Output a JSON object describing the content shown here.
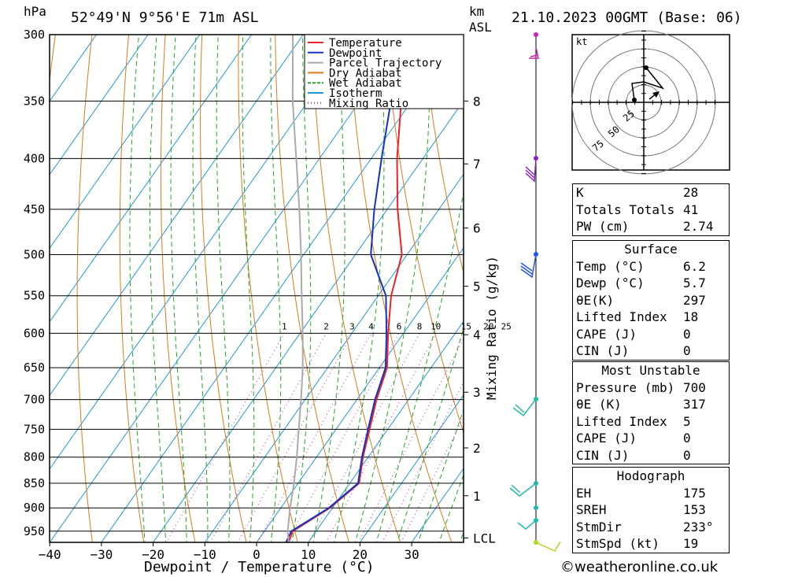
{
  "header": {
    "location": "52°49'N  9°56'E  71m  ASL",
    "datetime": "21.10.2023  00GMT  (Base: 06)",
    "hpa_unit": "hPa",
    "km_unit": "km",
    "asl_unit": "ASL"
  },
  "legend": [
    {
      "name": "Temperature",
      "color": "#ee2222",
      "style": "solid"
    },
    {
      "name": "Dewpoint",
      "color": "#1133cc",
      "style": "solid"
    },
    {
      "name": "Parcel Trajectory",
      "color": "#aaaaaa",
      "style": "solid"
    },
    {
      "name": "Dry Adiabat",
      "color": "#e07a1a",
      "style": "solid"
    },
    {
      "name": "Wet Adiabat",
      "color": "#22aa22",
      "style": "dashed"
    },
    {
      "name": "Isotherm",
      "color": "#2299dd",
      "style": "solid"
    },
    {
      "name": "Mixing Ratio",
      "color": "#cc22aa",
      "style": "dotted"
    }
  ],
  "chart_data": {
    "type": "line",
    "xlabel": "Dewpoint / Temperature (°C)",
    "ylabel_right": "Mixing Ratio (g/kg)",
    "x_ticks": [
      -40,
      -30,
      -20,
      -10,
      0,
      10,
      20,
      30
    ],
    "x_tick_labels": [
      "−40",
      "−30",
      "−20",
      "−10",
      "0",
      "10",
      "20",
      "30"
    ],
    "pressure_levels": [
      300,
      350,
      400,
      450,
      500,
      550,
      600,
      650,
      700,
      750,
      800,
      850,
      900,
      950
    ],
    "pressure_labels": [
      "300",
      "350",
      "400",
      "450",
      "500",
      "550",
      "600",
      "650",
      "700",
      "750",
      "800",
      "850",
      "900",
      "950"
    ],
    "ylim_hpa": [
      300,
      975
    ],
    "km_ticks": [
      {
        "label": "8",
        "p": 350
      },
      {
        "label": "7",
        "p": 405
      },
      {
        "label": "6",
        "p": 470
      },
      {
        "label": "5",
        "p": 538
      },
      {
        "label": "4",
        "p": 602
      },
      {
        "label": "3",
        "p": 688
      },
      {
        "label": "2",
        "p": 783
      },
      {
        "label": "1",
        "p": 875
      },
      {
        "label": "LCL",
        "p": 965
      }
    ],
    "mixing_ratio_labels": [
      "1",
      "2",
      "3",
      "4",
      "6",
      "8",
      "10",
      "15",
      "20",
      "25"
    ],
    "mixing_ratio_values": [
      1,
      2,
      3,
      4,
      6,
      8,
      10,
      15,
      20,
      25
    ],
    "series": [
      {
        "name": "Temperature",
        "color": "#ee2222",
        "points": [
          [
            975,
            6.2
          ],
          [
            950,
            5.5
          ],
          [
            900,
            9.5
          ],
          [
            850,
            11.8
          ],
          [
            800,
            9.0
          ],
          [
            750,
            6.5
          ],
          [
            700,
            3.8
          ],
          [
            650,
            1.5
          ],
          [
            600,
            -3.0
          ],
          [
            550,
            -7.5
          ],
          [
            500,
            -11.0
          ],
          [
            450,
            -18.0
          ],
          [
            400,
            -25.0
          ],
          [
            350,
            -32.0
          ],
          [
            300,
            -42.0
          ]
        ]
      },
      {
        "name": "Dewpoint",
        "color": "#1133cc",
        "points": [
          [
            975,
            5.7
          ],
          [
            950,
            5.2
          ],
          [
            900,
            9.3
          ],
          [
            850,
            11.6
          ],
          [
            800,
            8.8
          ],
          [
            750,
            6.2
          ],
          [
            700,
            3.5
          ],
          [
            650,
            1.2
          ],
          [
            600,
            -3.3
          ],
          [
            550,
            -8.5
          ],
          [
            500,
            -17.0
          ],
          [
            450,
            -22.5
          ],
          [
            400,
            -28.0
          ],
          [
            350,
            -34.0
          ],
          [
            300,
            -42.5
          ]
        ]
      },
      {
        "name": "Parcel Trajectory",
        "color": "#aaaaaa",
        "points": [
          [
            975,
            6.2
          ],
          [
            950,
            4.5
          ],
          [
            900,
            1.8
          ],
          [
            850,
            -0.8
          ],
          [
            800,
            -3.8
          ],
          [
            750,
            -7.2
          ],
          [
            700,
            -10.8
          ],
          [
            650,
            -14.8
          ],
          [
            600,
            -19.5
          ],
          [
            550,
            -24.8
          ],
          [
            500,
            -30.5
          ],
          [
            450,
            -37.0
          ],
          [
            400,
            -44.5
          ],
          [
            350,
            -53.0
          ],
          [
            300,
            -62.0
          ]
        ]
      }
    ]
  },
  "hodograph": {
    "unit": "kt",
    "ring_labels": [
      "25",
      "50",
      "75"
    ]
  },
  "indices": {
    "general": [
      {
        "label": "K",
        "value": "28"
      },
      {
        "label": "Totals Totals",
        "value": "41"
      },
      {
        "label": "PW (cm)",
        "value": "2.74"
      }
    ],
    "surface": {
      "title": "Surface",
      "rows": [
        {
          "label": "Temp (°C)",
          "value": "6.2"
        },
        {
          "label": "Dewp (°C)",
          "value": "5.7"
        },
        {
          "label": "θE(K)",
          "value": "297"
        },
        {
          "label": "Lifted Index",
          "value": "18"
        },
        {
          "label": "CAPE (J)",
          "value": "0"
        },
        {
          "label": "CIN (J)",
          "value": "0"
        }
      ]
    },
    "most_unstable": {
      "title": "Most Unstable",
      "rows": [
        {
          "label": "Pressure (mb)",
          "value": "700"
        },
        {
          "label": "θE (K)",
          "value": "317"
        },
        {
          "label": "Lifted Index",
          "value": "5"
        },
        {
          "label": "CAPE (J)",
          "value": "0"
        },
        {
          "label": "CIN (J)",
          "value": "0"
        }
      ]
    },
    "hodograph": {
      "title": "Hodograph",
      "rows": [
        {
          "label": "EH",
          "value": "175"
        },
        {
          "label": "SREH",
          "value": "153"
        },
        {
          "label": "StmDir",
          "value": "233°"
        },
        {
          "label": "StmSpd (kt)",
          "value": "19"
        }
      ]
    }
  },
  "credit": "©weatheronline.co.uk"
}
